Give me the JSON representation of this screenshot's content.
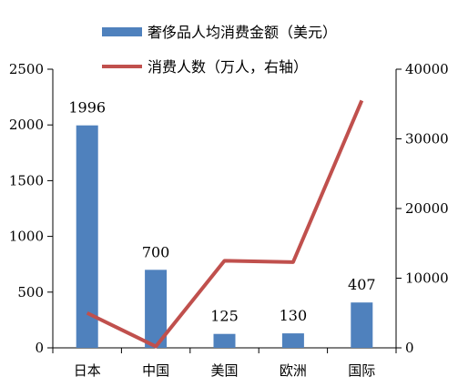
{
  "chart_data": {
    "type": "bar+line",
    "categories": [
      "日本",
      "中国",
      "美国",
      "欧洲",
      "国际"
    ],
    "series": [
      {
        "name": "奢侈品人均消费金额（美元）",
        "type": "bar",
        "axis": "left",
        "color": "#4F81BD",
        "values": [
          1996,
          700,
          125,
          130,
          407
        ],
        "data_labels": [
          "1996",
          "700",
          "125",
          "130",
          "407"
        ]
      },
      {
        "name": "消费人数（万人，右轴）",
        "type": "line",
        "axis": "right",
        "color": "#C0504D",
        "values": [
          5000,
          200,
          12500,
          12300,
          35500
        ]
      }
    ],
    "y_left": {
      "min": 0,
      "max": 2500,
      "ticks": [
        "0",
        "500",
        "1000",
        "1500",
        "2000",
        "2500"
      ]
    },
    "y_right": {
      "min": 0,
      "max": 40000,
      "ticks": [
        "0",
        "10000",
        "20000",
        "30000",
        "40000"
      ]
    },
    "legend_position": "top",
    "grid": false
  }
}
